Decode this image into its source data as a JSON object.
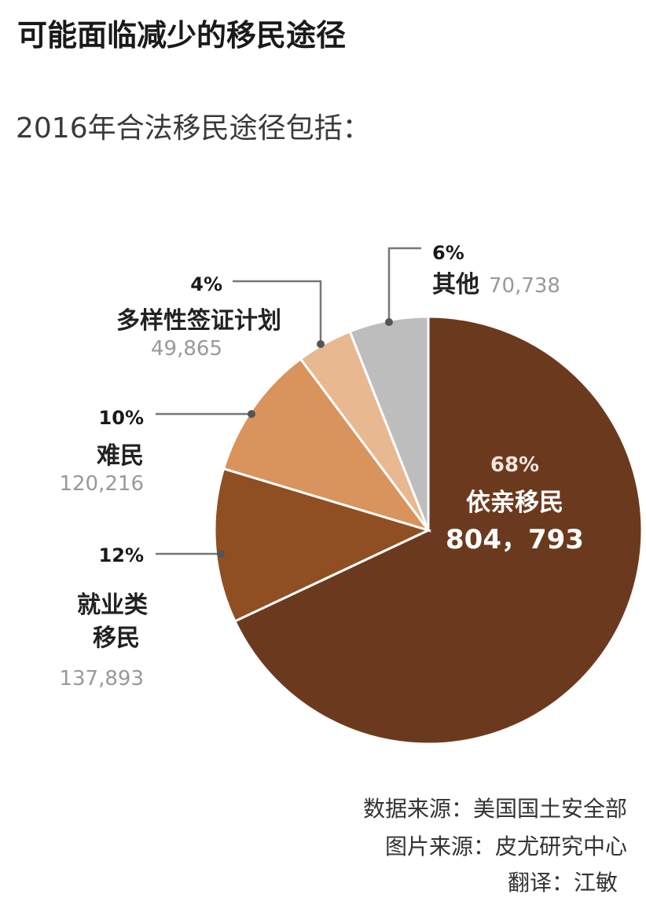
{
  "title": "可能面临减少的移民途径",
  "subtitle": "2016年合法移民途径包括：",
  "chart_data": {
    "type": "pie",
    "slices": [
      {
        "label": "依亲移民",
        "percent": "68%",
        "value": 804793,
        "value_text": "804，793",
        "color": "#6b3a1e"
      },
      {
        "label": "就业类移民",
        "label_lines": [
          "就业类",
          "移民"
        ],
        "percent": "12%",
        "value": 137893,
        "value_text": "137,893",
        "color": "#8f4f22"
      },
      {
        "label": "难民",
        "percent": "10%",
        "value": 120216,
        "value_text": "120,216",
        "color": "#d9935c"
      },
      {
        "label": "多样性签证计划",
        "percent": "4%",
        "value": 49865,
        "value_text": "49,865",
        "color": "#e8b890"
      },
      {
        "label": "其他",
        "percent": "6%",
        "value": 70738,
        "value_text": "70,738",
        "color": "#bdbdbd"
      }
    ]
  },
  "footer": {
    "data_source": "数据来源：美国国土安全部",
    "image_source": "图片来源：皮尤研究中心",
    "translator": "翻译：江敏"
  }
}
